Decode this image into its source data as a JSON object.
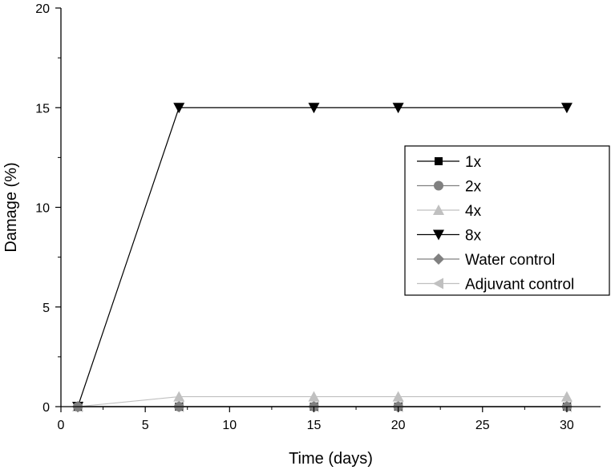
{
  "chart_data": {
    "type": "line",
    "title": "",
    "xlabel": "Time (days)",
    "ylabel": "Damage (%)",
    "xlim": [
      0,
      32
    ],
    "ylim": [
      0,
      20
    ],
    "xticks": [
      0,
      5,
      10,
      15,
      20,
      25,
      30
    ],
    "yticks": [
      0,
      5,
      10,
      15,
      20
    ],
    "x": [
      1,
      7,
      15,
      20,
      30
    ],
    "legend_position": "right",
    "series": [
      {
        "name": "1x",
        "values": [
          0,
          0,
          0,
          0,
          0
        ],
        "color": "#000000",
        "marker": "square"
      },
      {
        "name": "2x",
        "values": [
          0,
          0,
          0,
          0,
          0
        ],
        "color": "#808080",
        "marker": "circle"
      },
      {
        "name": "4x",
        "values": [
          0,
          0.5,
          0.5,
          0.5,
          0.5
        ],
        "color": "#c0c0c0",
        "marker": "triangle-up"
      },
      {
        "name": "8x",
        "values": [
          0,
          15,
          15,
          15,
          15
        ],
        "color": "#000000",
        "marker": "triangle-down"
      },
      {
        "name": "Water control",
        "values": [
          0,
          0,
          0,
          0,
          0
        ],
        "color": "#808080",
        "marker": "diamond"
      },
      {
        "name": "Adjuvant control",
        "values": [
          0,
          0,
          0,
          0,
          0
        ],
        "color": "#c0c0c0",
        "marker": "triangle-left"
      }
    ]
  }
}
